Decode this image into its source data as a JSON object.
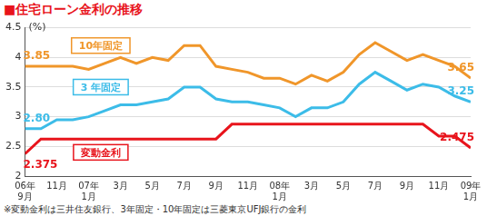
{
  "chart_data": {
    "type": "line",
    "title": "■住宅ローン金利の推移",
    "ylabel": "(%)",
    "footnote": "※変動金利は三井住友銀行、3年固定・10年固定は三菱東京UFJ銀行の金利",
    "categories": [
      "06年\n9月",
      null,
      "11月",
      null,
      "07年\n1月",
      null,
      "3月",
      null,
      "5月",
      null,
      "7月",
      null,
      "9月",
      null,
      "11月",
      null,
      "08年\n1月",
      null,
      "3月",
      null,
      "5月",
      null,
      "7月",
      null,
      "9月",
      null,
      "11月",
      null,
      "09年\n1月"
    ],
    "series": [
      {
        "name": "10年固定",
        "color": "#f0962a",
        "values": [
          3.85,
          3.85,
          3.85,
          3.85,
          3.8,
          3.9,
          4.0,
          3.9,
          4.0,
          3.95,
          4.2,
          4.2,
          3.85,
          3.8,
          3.75,
          3.65,
          3.65,
          3.55,
          3.7,
          3.6,
          3.75,
          4.05,
          4.25,
          4.1,
          3.95,
          4.05,
          3.95,
          3.85,
          3.65
        ],
        "value_labels": [
          "3.85",
          null,
          null,
          null,
          null,
          null,
          null,
          null,
          null,
          null,
          null,
          null,
          null,
          null,
          null,
          null,
          null,
          null,
          null,
          null,
          null,
          null,
          null,
          null,
          null,
          null,
          null,
          null,
          "3.65"
        ]
      },
      {
        "name": "3 年固定",
        "color": "#3cbce8",
        "values": [
          2.8,
          2.8,
          2.95,
          2.95,
          3.0,
          3.1,
          3.2,
          3.2,
          3.25,
          3.3,
          3.5,
          3.5,
          3.3,
          3.25,
          3.25,
          3.2,
          3.15,
          3.0,
          3.15,
          3.15,
          3.25,
          3.55,
          3.75,
          3.6,
          3.45,
          3.55,
          3.5,
          3.35,
          3.25
        ],
        "value_labels": [
          "2.80",
          null,
          null,
          null,
          null,
          null,
          null,
          null,
          null,
          null,
          null,
          null,
          null,
          null,
          null,
          null,
          null,
          null,
          null,
          null,
          null,
          null,
          null,
          null,
          null,
          null,
          null,
          null,
          "3.25"
        ]
      },
      {
        "name": "変動金利",
        "color": "#e8141c",
        "values": [
          2.375,
          2.625,
          2.625,
          2.625,
          2.625,
          2.625,
          2.625,
          2.625,
          2.625,
          2.625,
          2.625,
          2.625,
          2.625,
          2.875,
          2.875,
          2.875,
          2.875,
          2.875,
          2.875,
          2.875,
          2.875,
          2.875,
          2.875,
          2.875,
          2.875,
          2.875,
          2.675,
          2.675,
          2.475
        ],
        "value_labels": [
          "2.375",
          null,
          null,
          null,
          null,
          null,
          null,
          null,
          null,
          null,
          null,
          null,
          null,
          null,
          null,
          null,
          null,
          null,
          null,
          null,
          null,
          null,
          null,
          null,
          null,
          null,
          null,
          null,
          "2.475"
        ]
      }
    ],
    "ylim": [
      2,
      4.5
    ],
    "yticks": [
      2,
      2.5,
      3,
      3.5,
      4,
      4.5
    ],
    "grid": true,
    "data_labels": true
  }
}
